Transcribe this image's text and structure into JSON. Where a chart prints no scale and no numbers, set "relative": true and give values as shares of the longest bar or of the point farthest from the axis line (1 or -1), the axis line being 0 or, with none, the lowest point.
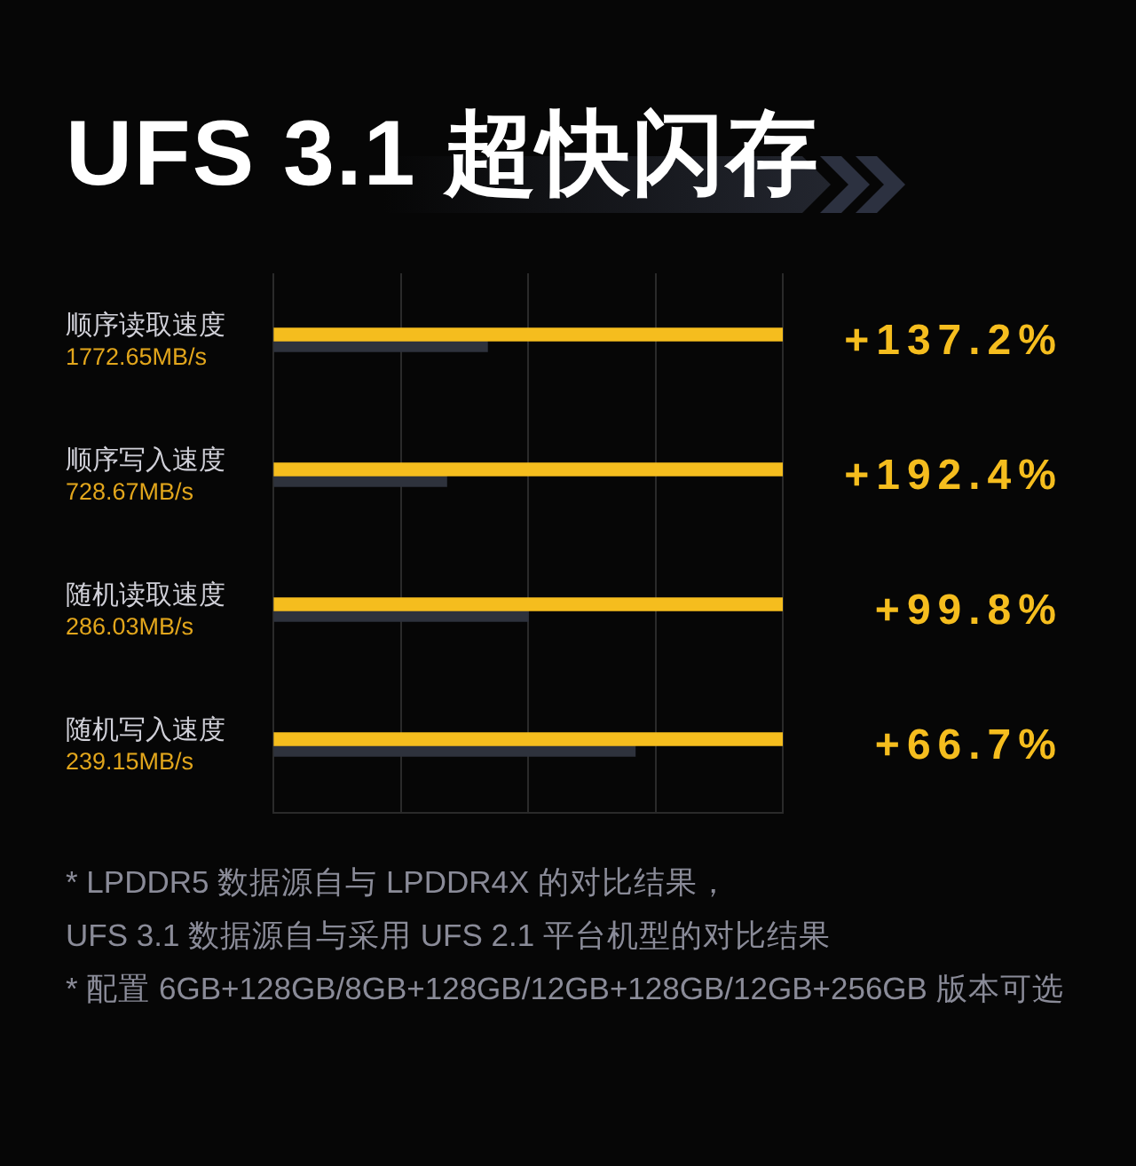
{
  "chart_data": {
    "type": "bar",
    "orientation": "horizontal",
    "relative": true,
    "title": "UFS 3.1 超快闪存",
    "categories": [
      "顺序读取速度\n1772.65MB/s",
      "顺序写入速度\n728.67MB/s",
      "随机读取速度\n286.03MB/s",
      "随机写入速度\n239.15MB/s"
    ],
    "y2_categories": [
      "+137.2%",
      "+192.4%",
      "+99.8%",
      "+66.7%"
    ],
    "series": [
      {
        "color": "#f5bd1e",
        "values": [
          1,
          1,
          1,
          1
        ]
      },
      {
        "color": "#2e323c",
        "values": [
          0.42,
          0.34,
          0.5,
          0.71
        ]
      }
    ],
    "grid": "x",
    "annotations": [
      "* LPDDR5 数据源自与 LPDDR4X 的对比结果，",
      "UFS 3.1 数据源自与采用 UFS 2.1 平台机型的对比结果",
      "* 配置 6GB+128GB/8GB+128GB/12GB+128GB/12GB+256GB 版本可选"
    ]
  }
}
